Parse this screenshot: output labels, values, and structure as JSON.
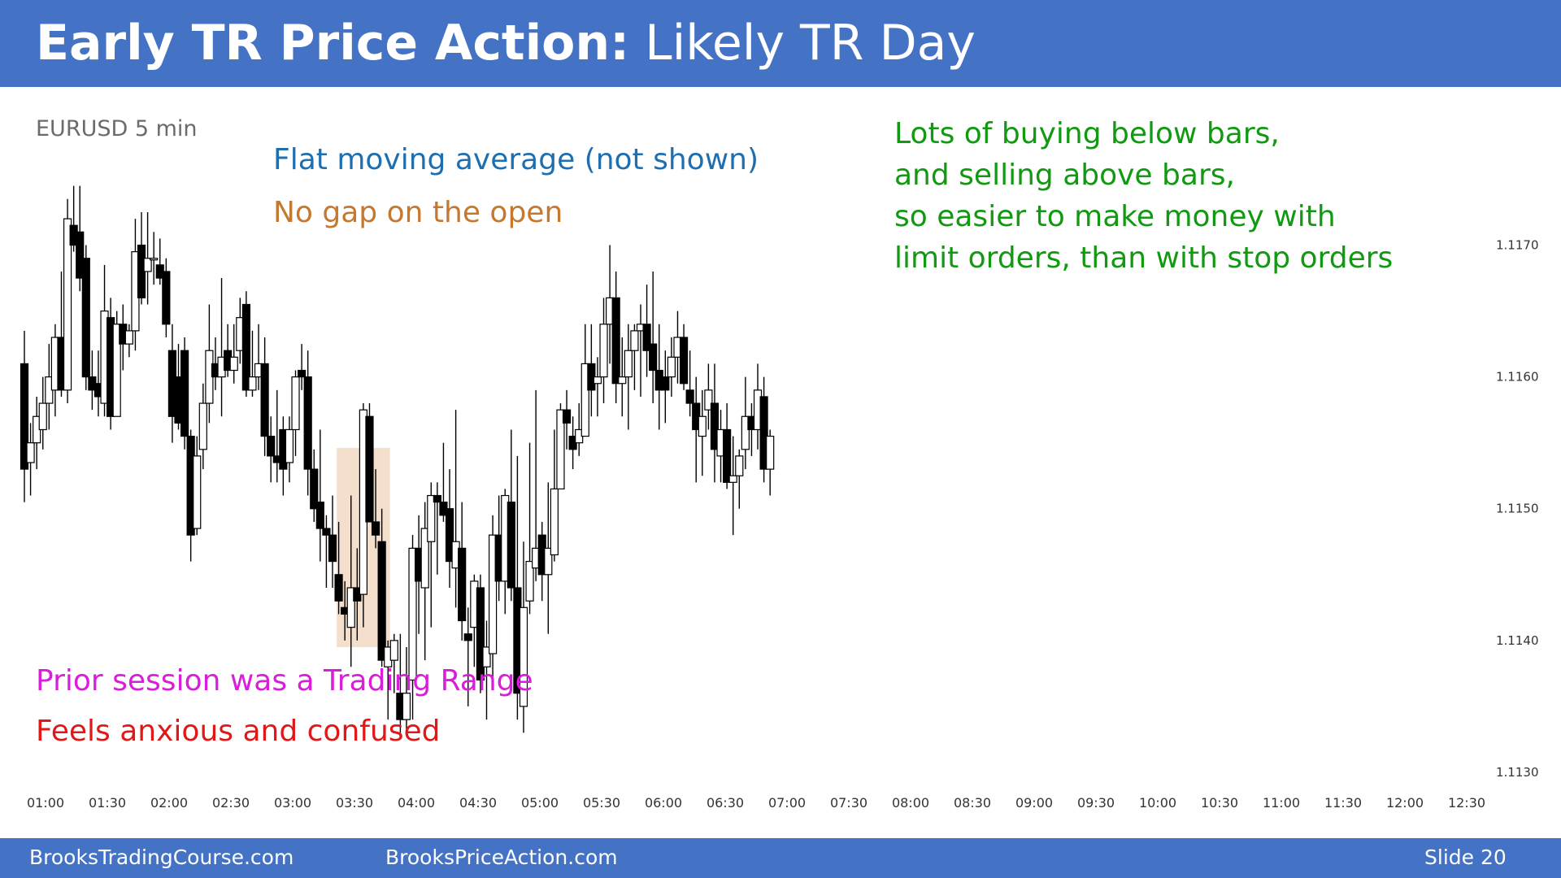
{
  "title": {
    "bold": "Early TR Price Action:",
    "rest": " Likely TR Day"
  },
  "symbol": "EURUSD 5 min",
  "notes": {
    "ma": "Flat moving average (not shown)",
    "gap": "No gap on the open",
    "limit1": "Lots of buying below bars,",
    "limit2": "and selling above bars,",
    "limit3": "so easier to make money with",
    "limit4": "limit orders, than with stop orders",
    "prior": "Prior session was a Trading Range",
    "feels": "Feels anxious and confused"
  },
  "footer": {
    "left": "BrooksTradingCourse.com",
    "mid": "BrooksPriceAction.com",
    "slide": "Slide  20"
  },
  "colors": {
    "header": "#4472c4",
    "ma_note": "#1f6fb0",
    "gap_note": "#c5782f",
    "limit_note": "#119a11",
    "prior_note": "#d91ed9",
    "feels_note": "#e01818",
    "highlight": "#f3dfcb"
  },
  "chart_data": {
    "type": "candlestick",
    "instrument": "EURUSD 5 min",
    "ylim": [
      1.1125,
      1.1182
    ],
    "y_ticks": [
      {
        "value": 1.117,
        "label": "1.1170"
      },
      {
        "value": 1.116,
        "label": "1.1160"
      },
      {
        "value": 1.115,
        "label": "1.1150"
      },
      {
        "value": 1.114,
        "label": "1.1140"
      },
      {
        "value": 1.113,
        "label": "1.1130"
      }
    ],
    "x_ticks": [
      "01:00",
      "01:30",
      "02:00",
      "02:30",
      "03:00",
      "03:30",
      "04:00",
      "04:30",
      "05:00",
      "05:30",
      "06:00",
      "06:30",
      "07:00",
      "07:30",
      "08:00",
      "08:30",
      "09:00",
      "09:30",
      "10:00",
      "10:30",
      "11:00",
      "11:30",
      "12:00",
      "12:30"
    ],
    "highlight_bars": [
      52,
      58
    ],
    "candles": [
      [
        1.1161,
        1.11635,
        1.11505,
        1.1153
      ],
      [
        1.11535,
        1.11565,
        1.1151,
        1.1155
      ],
      [
        1.1155,
        1.11585,
        1.1153,
        1.1157
      ],
      [
        1.1156,
        1.116,
        1.11545,
        1.1158
      ],
      [
        1.1158,
        1.11625,
        1.1156,
        1.116
      ],
      [
        1.1159,
        1.1164,
        1.1157,
        1.1163
      ],
      [
        1.1163,
        1.1168,
        1.11585,
        1.1159
      ],
      [
        1.1159,
        1.11735,
        1.1158,
        1.1172
      ],
      [
        1.11715,
        1.11745,
        1.11695,
        1.117
      ],
      [
        1.1171,
        1.11745,
        1.11665,
        1.11675
      ],
      [
        1.1169,
        1.117,
        1.1159,
        1.116
      ],
      [
        1.116,
        1.1162,
        1.11575,
        1.1159
      ],
      [
        1.11595,
        1.1162,
        1.1157,
        1.11585
      ],
      [
        1.1158,
        1.11685,
        1.1157,
        1.1165
      ],
      [
        1.11645,
        1.1166,
        1.1156,
        1.1157
      ],
      [
        1.1157,
        1.1165,
        1.1157,
        1.1164
      ],
      [
        1.1164,
        1.11655,
        1.11605,
        1.11625
      ],
      [
        1.11625,
        1.1164,
        1.11615,
        1.11635
      ],
      [
        1.11635,
        1.1172,
        1.1162,
        1.11695
      ],
      [
        1.117,
        1.11725,
        1.11655,
        1.1166
      ],
      [
        1.1168,
        1.11725,
        1.11655,
        1.1169
      ],
      [
        1.1169,
        1.1171,
        1.1167,
        1.1169
      ],
      [
        1.11685,
        1.11705,
        1.1167,
        1.11675
      ],
      [
        1.1168,
        1.1169,
        1.1163,
        1.1164
      ],
      [
        1.1162,
        1.1164,
        1.1155,
        1.1157
      ],
      [
        1.116,
        1.11625,
        1.1156,
        1.11565
      ],
      [
        1.1162,
        1.1163,
        1.11545,
        1.11555
      ],
      [
        1.11555,
        1.1156,
        1.1146,
        1.1148
      ],
      [
        1.11485,
        1.11555,
        1.1148,
        1.1154
      ],
      [
        1.11545,
        1.11595,
        1.1153,
        1.1158
      ],
      [
        1.1158,
        1.11655,
        1.11565,
        1.1162
      ],
      [
        1.1161,
        1.1163,
        1.1159,
        1.116
      ],
      [
        1.116,
        1.11675,
        1.1157,
        1.11615
      ],
      [
        1.1162,
        1.1164,
        1.116,
        1.11605
      ],
      [
        1.11605,
        1.1164,
        1.11595,
        1.11615
      ],
      [
        1.1162,
        1.1166,
        1.1161,
        1.11645
      ],
      [
        1.11655,
        1.11665,
        1.11585,
        1.1159
      ],
      [
        1.1159,
        1.11635,
        1.11585,
        1.116
      ],
      [
        1.116,
        1.1164,
        1.1159,
        1.1161
      ],
      [
        1.1161,
        1.1163,
        1.1154,
        1.11555
      ],
      [
        1.11555,
        1.1157,
        1.1152,
        1.1154
      ],
      [
        1.1154,
        1.1159,
        1.1152,
        1.11535
      ],
      [
        1.1156,
        1.1157,
        1.1151,
        1.1153
      ],
      [
        1.11535,
        1.1157,
        1.1152,
        1.1156
      ],
      [
        1.1156,
        1.11605,
        1.1154,
        1.116
      ],
      [
        1.11605,
        1.11625,
        1.1159,
        1.116
      ],
      [
        1.116,
        1.1162,
        1.1151,
        1.1153
      ],
      [
        1.1153,
        1.11545,
        1.1149,
        1.115
      ],
      [
        1.11505,
        1.1156,
        1.1146,
        1.11485
      ],
      [
        1.11485,
        1.11495,
        1.1144,
        1.1148
      ],
      [
        1.1148,
        1.1151,
        1.1144,
        1.1146
      ],
      [
        1.1145,
        1.1149,
        1.1142,
        1.1143
      ],
      [
        1.11425,
        1.11445,
        1.114,
        1.1142
      ],
      [
        1.1141,
        1.1151,
        1.1138,
        1.1144
      ],
      [
        1.1144,
        1.1147,
        1.114,
        1.1143
      ],
      [
        1.11435,
        1.1158,
        1.1141,
        1.11575
      ],
      [
        1.1157,
        1.1158,
        1.1149,
        1.1149
      ],
      [
        1.1149,
        1.1153,
        1.1147,
        1.1148
      ],
      [
        1.11475,
        1.115,
        1.1138,
        1.11385
      ],
      [
        1.1138,
        1.114,
        1.1134,
        1.11395
      ],
      [
        1.11385,
        1.11405,
        1.1136,
        1.114
      ],
      [
        1.1136,
        1.11405,
        1.1133,
        1.1134
      ],
      [
        1.1134,
        1.11395,
        1.1133,
        1.1136
      ],
      [
        1.1137,
        1.1148,
        1.1134,
        1.1147
      ],
      [
        1.1147,
        1.11495,
        1.11405,
        1.11445
      ],
      [
        1.1144,
        1.11505,
        1.11385,
        1.11485
      ],
      [
        1.11475,
        1.1152,
        1.1141,
        1.1151
      ],
      [
        1.1151,
        1.1152,
        1.1145,
        1.11505
      ],
      [
        1.11505,
        1.1155,
        1.1149,
        1.11495
      ],
      [
        1.115,
        1.1153,
        1.1144,
        1.1146
      ],
      [
        1.11455,
        1.11575,
        1.11425,
        1.11475
      ],
      [
        1.1147,
        1.11505,
        1.114,
        1.11415
      ],
      [
        1.11405,
        1.11425,
        1.1135,
        1.114
      ],
      [
        1.1141,
        1.1145,
        1.1138,
        1.11445
      ],
      [
        1.1144,
        1.1145,
        1.1136,
        1.1137
      ],
      [
        1.1138,
        1.11415,
        1.1134,
        1.11395
      ],
      [
        1.1139,
        1.11495,
        1.1137,
        1.1148
      ],
      [
        1.1148,
        1.1151,
        1.1143,
        1.11445
      ],
      [
        1.11445,
        1.11515,
        1.1142,
        1.1151
      ],
      [
        1.11505,
        1.1156,
        1.1143,
        1.1144
      ],
      [
        1.1144,
        1.1154,
        1.1134,
        1.1136
      ],
      [
        1.1135,
        1.11475,
        1.1133,
        1.11425
      ],
      [
        1.1143,
        1.1155,
        1.1142,
        1.1146
      ],
      [
        1.11455,
        1.1159,
        1.11445,
        1.1147
      ],
      [
        1.1148,
        1.1149,
        1.1143,
        1.1145
      ],
      [
        1.1145,
        1.1152,
        1.11405,
        1.1147
      ],
      [
        1.11465,
        1.1156,
        1.1146,
        1.11515
      ],
      [
        1.11515,
        1.1158,
        1.11515,
        1.11575
      ],
      [
        1.11575,
        1.1159,
        1.11545,
        1.11565
      ],
      [
        1.11555,
        1.1157,
        1.1153,
        1.11545
      ],
      [
        1.1155,
        1.1158,
        1.1154,
        1.1156
      ],
      [
        1.11555,
        1.1164,
        1.11555,
        1.1161
      ],
      [
        1.1161,
        1.1164,
        1.1157,
        1.1159
      ],
      [
        1.11595,
        1.11615,
        1.1157,
        1.116
      ],
      [
        1.116,
        1.1166,
        1.1158,
        1.1164
      ],
      [
        1.1164,
        1.117,
        1.1161,
        1.1166
      ],
      [
        1.1166,
        1.1168,
        1.1158,
        1.11595
      ],
      [
        1.11595,
        1.1163,
        1.1157,
        1.116
      ],
      [
        1.116,
        1.1164,
        1.1156,
        1.1162
      ],
      [
        1.1162,
        1.1164,
        1.1159,
        1.11635
      ],
      [
        1.11635,
        1.11655,
        1.11585,
        1.1164
      ],
      [
        1.1164,
        1.1167,
        1.116,
        1.1162
      ],
      [
        1.11625,
        1.1168,
        1.1158,
        1.11605
      ],
      [
        1.11605,
        1.1164,
        1.1156,
        1.1159
      ],
      [
        1.116,
        1.1162,
        1.11565,
        1.1159
      ],
      [
        1.116,
        1.1163,
        1.11585,
        1.11615
      ],
      [
        1.11615,
        1.1165,
        1.11595,
        1.1163
      ],
      [
        1.1163,
        1.1164,
        1.1159,
        1.11595
      ],
      [
        1.1159,
        1.1162,
        1.1157,
        1.1158
      ],
      [
        1.1158,
        1.116,
        1.1152,
        1.1156
      ],
      [
        1.11555,
        1.1159,
        1.11525,
        1.1157
      ],
      [
        1.11575,
        1.1161,
        1.1156,
        1.1159
      ],
      [
        1.1158,
        1.1161,
        1.1152,
        1.11545
      ],
      [
        1.1154,
        1.11575,
        1.1152,
        1.1156
      ],
      [
        1.1156,
        1.1158,
        1.11515,
        1.1152
      ],
      [
        1.1152,
        1.11555,
        1.1148,
        1.11525
      ],
      [
        1.11525,
        1.11545,
        1.115,
        1.1154
      ],
      [
        1.11545,
        1.116,
        1.1153,
        1.1157
      ],
      [
        1.1157,
        1.1158,
        1.1154,
        1.1156
      ],
      [
        1.1156,
        1.1161,
        1.11545,
        1.1159
      ],
      [
        1.11585,
        1.116,
        1.1152,
        1.1153
      ],
      [
        1.1153,
        1.1156,
        1.1151,
        1.11555
      ]
    ]
  }
}
